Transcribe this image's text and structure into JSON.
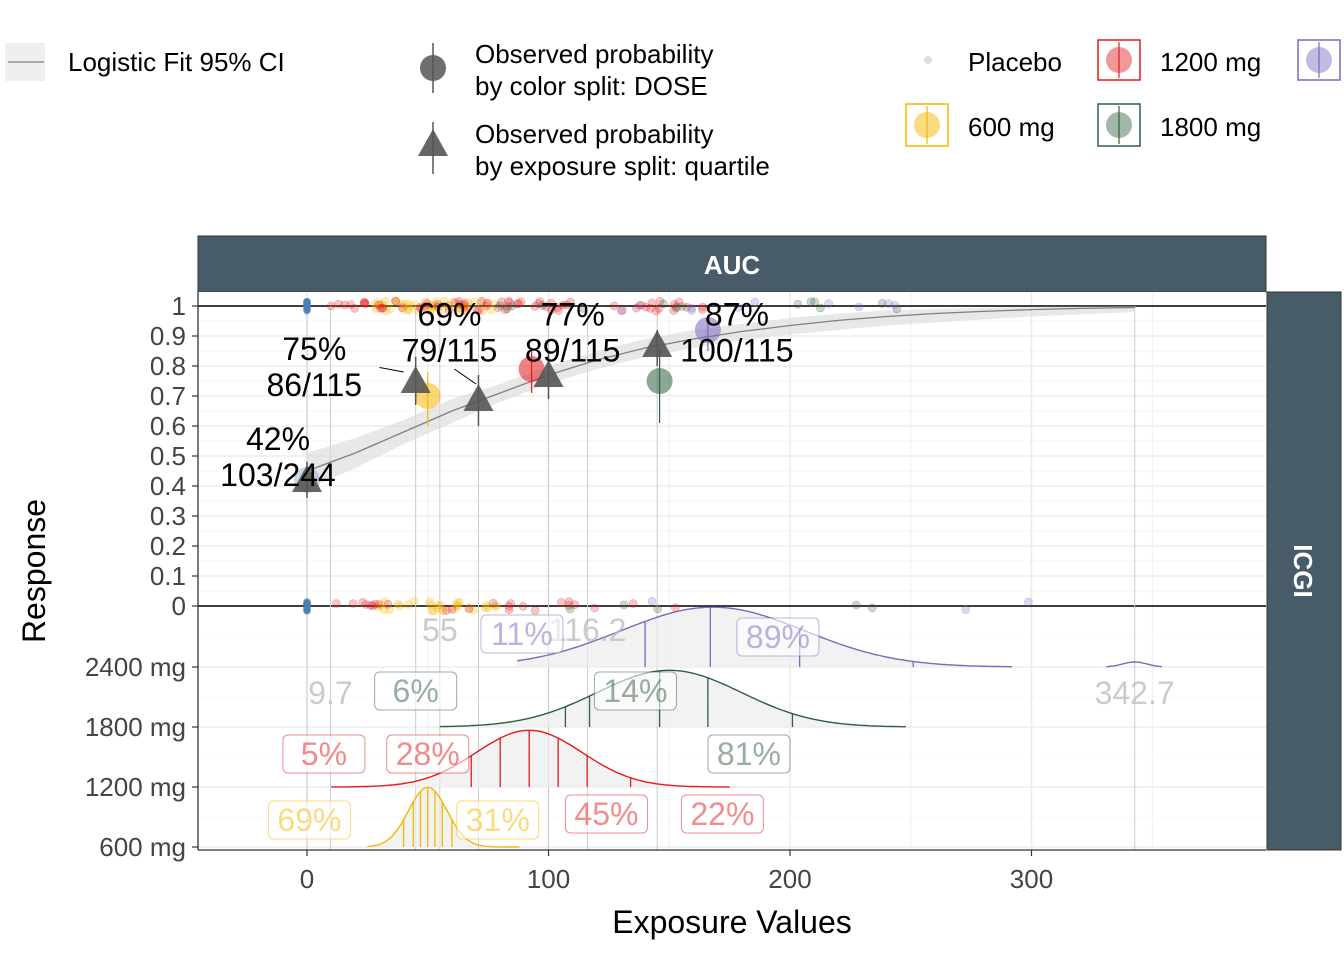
{
  "chart_data": {
    "type": "scatter",
    "title": "",
    "facet_top": "AUC",
    "facet_right": "ICGI",
    "xlabel": "Exposure Values",
    "ylabel": "Response",
    "xlim": [
      -45,
      395
    ],
    "x_ticks": [
      0,
      100,
      200,
      300
    ],
    "y_prob_ticks": [
      0,
      0.1,
      0.2,
      0.3,
      0.4,
      0.5,
      0.6,
      0.7,
      0.8,
      0.9,
      1
    ],
    "y_prob_tick_labels": [
      "0",
      "0.1",
      "0.2",
      "0.3",
      "0.4",
      "0.5",
      "0.6",
      "0.7",
      "0.8",
      "0.9",
      "1"
    ],
    "y_dose_tick_labels": [
      "600 mg",
      "1200 mg",
      "1800 mg",
      "2400 mg"
    ],
    "legend": {
      "fit_label": "Logistic Fit 95% CI",
      "color_split_label": [
        "Observed probability",
        "by color split: DOSE"
      ],
      "exposure_split_label": [
        "Observed probability",
        "by exposure split: quartile"
      ],
      "groups": [
        {
          "name": "Placebo",
          "color": "#4682B4"
        },
        {
          "name": "1200 mg",
          "color": "#E41A1C"
        },
        {
          "name": "",
          "color": "#7B68BE"
        },
        {
          "name": "600 mg",
          "color": "#F5B700"
        },
        {
          "name": "1800 mg",
          "color": "#2F5F3F"
        }
      ]
    },
    "colors": {
      "placebo": "#4682B4",
      "dose_600": "#F5B700",
      "dose_1200": "#E41A1C",
      "dose_1800": "#2F5F3F",
      "dose_2400": "#7B68BE",
      "strip": "#475B69",
      "ci_band": "#D9D9D9",
      "fit": "#7F7F7F"
    },
    "logistic_fit": {
      "x": [
        0,
        20,
        40,
        60,
        80,
        100,
        120,
        140,
        160,
        180,
        200,
        220,
        240,
        260,
        280,
        300,
        320,
        343
      ],
      "y": [
        0.45,
        0.51,
        0.58,
        0.65,
        0.71,
        0.77,
        0.82,
        0.86,
        0.89,
        0.915,
        0.935,
        0.952,
        0.965,
        0.975,
        0.982,
        0.988,
        0.992,
        0.995
      ],
      "ci_lo": [
        0.39,
        0.46,
        0.54,
        0.61,
        0.68,
        0.74,
        0.79,
        0.83,
        0.86,
        0.885,
        0.905,
        0.92,
        0.935,
        0.945,
        0.955,
        0.965,
        0.972,
        0.98
      ],
      "ci_hi": [
        0.51,
        0.56,
        0.62,
        0.69,
        0.74,
        0.8,
        0.85,
        0.89,
        0.92,
        0.94,
        0.96,
        0.975,
        0.985,
        0.99,
        0.994,
        0.997,
        0.998,
        0.999
      ]
    },
    "observed_by_dose": [
      {
        "group": "Placebo",
        "x": 0,
        "p": 0.42,
        "lo": 0.37,
        "hi": 0.48
      },
      {
        "group": "600 mg",
        "x": 50,
        "p": 0.7,
        "lo": 0.6,
        "hi": 0.78
      },
      {
        "group": "1200 mg",
        "x": 93,
        "p": 0.79,
        "lo": 0.71,
        "hi": 0.86
      },
      {
        "group": "1800 mg",
        "x": 146,
        "p": 0.75,
        "lo": 0.61,
        "hi": 0.86
      },
      {
        "group": "2400 mg",
        "x": 166,
        "p": 0.92,
        "lo": 0.85,
        "hi": 0.97
      }
    ],
    "observed_by_quartile": [
      {
        "x": 0,
        "p": 0.42,
        "lo": 0.36,
        "hi": 0.48,
        "label": [
          "42%",
          "103/244"
        ],
        "lx": -12,
        "ly": 0.5
      },
      {
        "x": 45,
        "p": 0.75,
        "lo": 0.67,
        "hi": 0.83,
        "label": [
          "75%",
          "86/115"
        ],
        "lx": 3,
        "ly": 0.8
      },
      {
        "x": 71,
        "p": 0.69,
        "lo": 0.6,
        "hi": 0.77,
        "label": [
          "69%",
          "79/115"
        ],
        "lx": 59,
        "ly": 0.915
      },
      {
        "x": 100,
        "p": 0.77,
        "lo": 0.69,
        "hi": 0.85,
        "label": [
          "77%",
          "89/115"
        ],
        "lx": 110,
        "ly": 0.915
      },
      {
        "x": 145,
        "p": 0.87,
        "lo": 0.8,
        "hi": 0.92,
        "label": [
          "87%",
          "100/115"
        ],
        "lx": 178,
        "ly": 0.915
      }
    ],
    "quartile_cuts": [
      {
        "x": 9.7,
        "label": "9.7",
        "label_row": 0.25
      },
      {
        "x": 55,
        "label": "55",
        "label_row": -0.25
      },
      {
        "x": 116.2,
        "label": "116.2",
        "label_row": -0.25
      },
      {
        "x": 342.7,
        "label": "342.7",
        "label_row": 0.25
      }
    ],
    "density_ridges": [
      {
        "dose": "600 mg",
        "color": "#F5B700",
        "row": 0,
        "center": 50,
        "sd": 8,
        "height": 0.95,
        "xmin": 25,
        "xmax": 88,
        "quantiles": [
          40,
          44,
          47,
          50,
          53,
          56,
          60
        ],
        "pct_labels": [
          {
            "text": "69%",
            "x": 1,
            "dy": 0.45
          },
          {
            "text": "31%",
            "x": 79,
            "dy": 0.45
          }
        ]
      },
      {
        "dose": "1200 mg",
        "color": "#E41A1C",
        "row": 1,
        "center": 92,
        "sd": 22,
        "height": 0.9,
        "xmin": 10,
        "xmax": 175,
        "quantiles": [
          68,
          80,
          92,
          104,
          116,
          134
        ],
        "pct_labels": [
          {
            "text": "5%",
            "x": 7,
            "dy": 0.55
          },
          {
            "text": "28%",
            "x": 50,
            "dy": 0.55
          },
          {
            "text": "45%",
            "x": 124,
            "dy": -0.45
          },
          {
            "text": "22%",
            "x": 172,
            "dy": -0.45
          }
        ]
      },
      {
        "dose": "1800 mg",
        "color": "#2F5F3F",
        "row": 2,
        "center": 150,
        "sd": 30,
        "height": 0.9,
        "xmin": 55,
        "xmax": 248,
        "quantiles": [
          107,
          117,
          146,
          166,
          201
        ],
        "pct_labels": [
          {
            "text": "6%",
            "x": 45,
            "dy": 0.6
          },
          {
            "text": "14%",
            "x": 136,
            "dy": 0.6
          },
          {
            "text": "81%",
            "x": 183,
            "dy": -0.45
          }
        ]
      },
      {
        "dose": "2400 mg",
        "color": "#7B68BE",
        "row": 3,
        "center": 168,
        "sd": 38,
        "height": 0.95,
        "xmin": 87,
        "xmax": 292,
        "quantiles": [
          140,
          167,
          204,
          251,
          280
        ],
        "pct_labels": [
          {
            "text": "11%",
            "x": 89,
            "dy": 0.55
          },
          {
            "text": "89%",
            "x": 195,
            "dy": 0.5
          }
        ]
      }
    ]
  }
}
